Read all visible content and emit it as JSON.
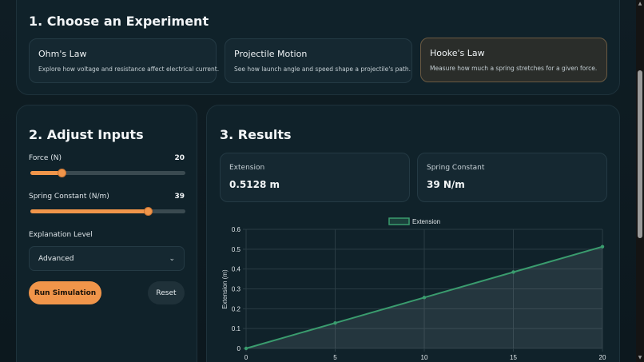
{
  "experiments": {
    "heading": "1. Choose an Experiment",
    "cards": [
      {
        "title": "Ohm's Law",
        "description": "Explore how voltage and resistance affect electrical current."
      },
      {
        "title": "Projectile Motion",
        "description": "See how launch angle and speed shape a projectile's path."
      },
      {
        "title": "Hooke's Law",
        "description": "Measure how much a spring stretches for a given force."
      }
    ],
    "active_index": 2
  },
  "inputs": {
    "heading": "2. Adjust Inputs",
    "force": {
      "label": "Force (N)",
      "value": "20",
      "fraction": 0.2
    },
    "spring": {
      "label": "Spring Constant (N/m)",
      "value": "39",
      "fraction": 0.76
    },
    "explanation": {
      "label": "Explanation Level",
      "selected": "Advanced"
    },
    "run_label": "Run Simulation",
    "reset_label": "Reset"
  },
  "results": {
    "heading": "3. Results",
    "extension": {
      "label": "Extension",
      "value": "0.5128 m"
    },
    "spring_constant": {
      "label": "Spring Constant",
      "value": "39 N/m"
    }
  },
  "colors": {
    "accent": "#f0954a",
    "series": "#3a9c6e"
  },
  "chart_data": {
    "type": "line",
    "series": [
      {
        "name": "Extension",
        "x": [
          0,
          5,
          10,
          15,
          20
        ],
        "values": [
          0,
          0.1282,
          0.2564,
          0.3846,
          0.5128
        ]
      }
    ],
    "x_ticks": [
      "0",
      "5",
      "10",
      "15",
      "20"
    ],
    "y_ticks": [
      "0",
      "0.1",
      "0.2",
      "0.3",
      "0.4",
      "0.5",
      "0.6"
    ],
    "xlim": [
      0,
      20
    ],
    "ylim": [
      0,
      0.6
    ],
    "ylabel": "Extension (m)",
    "legend_position": "top",
    "grid": true,
    "fill": true
  }
}
